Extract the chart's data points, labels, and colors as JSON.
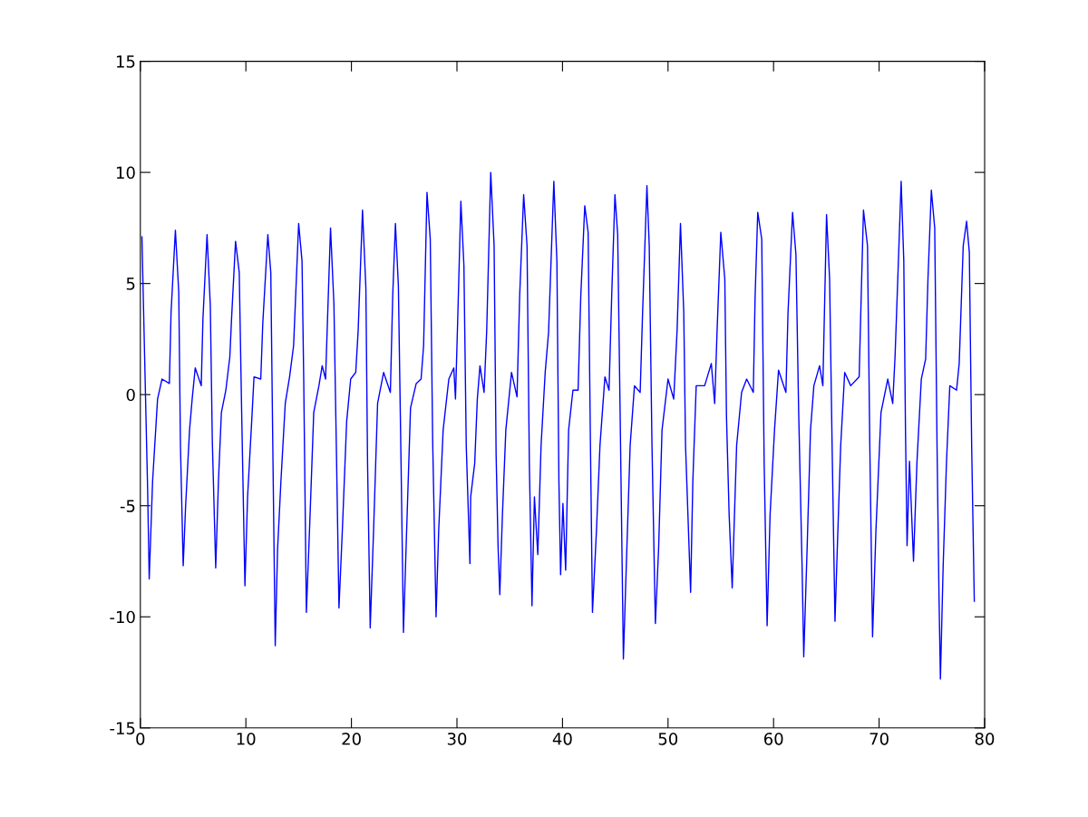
{
  "chart_data": {
    "type": "line",
    "xlim": [
      0,
      80
    ],
    "xticks": [
      0,
      10,
      20,
      30,
      40,
      50,
      60,
      70,
      80
    ],
    "ylim": [
      -15,
      15
    ],
    "yticks": [
      -15,
      -10,
      -5,
      0,
      5,
      10,
      15
    ],
    "grid": false,
    "series": [
      {
        "color": "#0000ff",
        "x": [
          0.15,
          0.69,
          0.84,
          1.16,
          1.63,
          2.05,
          2.75,
          2.91,
          3.32,
          3.64,
          3.8,
          4.06,
          4.28,
          4.66,
          4.91,
          5.2,
          5.77,
          5.93,
          6.32,
          6.63,
          6.82,
          7.14,
          7.4,
          7.68,
          8.1,
          8.48,
          8.64,
          9.02,
          9.37,
          9.6,
          9.91,
          10.16,
          10.55,
          10.77,
          11.41,
          11.6,
          12.08,
          12.36,
          12.55,
          12.78,
          13.0,
          13.32,
          13.73,
          14.14,
          14.52,
          15.0,
          15.32,
          15.48,
          15.73,
          16.06,
          16.43,
          16.92,
          17.23,
          17.55,
          18.02,
          18.34,
          18.57,
          18.82,
          19.14,
          19.55,
          19.93,
          20.41,
          20.64,
          21.05,
          21.37,
          21.53,
          21.78,
          22.1,
          22.48,
          23.05,
          23.69,
          23.91,
          24.17,
          24.45,
          24.71,
          24.93,
          25.18,
          25.6,
          26.14,
          26.6,
          26.84,
          27.16,
          27.47,
          27.7,
          28.02,
          28.27,
          28.69,
          29.23,
          29.7,
          29.86,
          30.09,
          30.37,
          30.66,
          30.88,
          31.23,
          31.3,
          31.68,
          31.93,
          32.18,
          32.57,
          32.82,
          33.2,
          33.52,
          33.71,
          33.9,
          34.06,
          34.31,
          34.63,
          35.17,
          35.69,
          35.94,
          36.32,
          36.64,
          36.86,
          37.11,
          37.34,
          37.66,
          37.97,
          38.36,
          38.68,
          39.18,
          39.47,
          39.66,
          39.82,
          40.04,
          40.3,
          40.58,
          40.99,
          41.48,
          41.73,
          42.11,
          42.43,
          42.65,
          42.84,
          43.22,
          43.55,
          44.02,
          44.41,
          44.66,
          44.97,
          45.23,
          45.46,
          45.77,
          46.0,
          46.41,
          46.82,
          47.36,
          47.59,
          48.0,
          48.22,
          48.48,
          48.8,
          49.11,
          49.43,
          50.0,
          50.54,
          50.86,
          51.18,
          51.49,
          51.66,
          52.14,
          52.35,
          52.67,
          53.47,
          54.1,
          54.42,
          54.65,
          55.0,
          55.38,
          55.54,
          55.79,
          56.08,
          56.5,
          56.97,
          57.45,
          58.08,
          58.25,
          58.5,
          58.88,
          59.11,
          59.39,
          59.67,
          60.09,
          60.47,
          61.17,
          61.37,
          61.8,
          62.12,
          62.38,
          62.7,
          62.86,
          63.18,
          63.5,
          63.82,
          64.36,
          64.67,
          65.02,
          65.31,
          65.56,
          65.82,
          66.04,
          66.36,
          66.74,
          67.31,
          68.11,
          68.33,
          68.52,
          68.9,
          69.12,
          69.38,
          69.7,
          70.18,
          70.82,
          71.29,
          71.51,
          71.77,
          72.09,
          72.34,
          72.5,
          72.65,
          72.88,
          73.26,
          73.58,
          74.0,
          74.41,
          74.63,
          74.95,
          75.27,
          75.49,
          75.68,
          75.81,
          76.07,
          76.38,
          76.7,
          77.34,
          77.59,
          77.97,
          78.29,
          78.55,
          78.77,
          79.02
        ],
        "values": [
          7.1,
          -4.3,
          -8.3,
          -3.9,
          -0.2,
          0.7,
          0.5,
          3.7,
          7.4,
          4.6,
          -2.3,
          -7.7,
          -5.1,
          -1.6,
          -0.2,
          1.2,
          0.4,
          3.4,
          7.2,
          4.0,
          -2.1,
          -7.8,
          -3.9,
          -0.8,
          0.2,
          1.7,
          3.4,
          6.9,
          5.5,
          -0.8,
          -8.6,
          -4.6,
          -1.2,
          0.8,
          0.7,
          3.2,
          7.2,
          5.5,
          -2.3,
          -11.3,
          -7.0,
          -3.9,
          -0.4,
          0.8,
          2.2,
          7.7,
          6.0,
          0.7,
          -9.8,
          -5.7,
          -0.8,
          0.4,
          1.3,
          0.7,
          7.5,
          4.1,
          -2.3,
          -9.6,
          -6.1,
          -1.2,
          0.7,
          1.0,
          2.9,
          8.3,
          4.8,
          -3.1,
          -10.5,
          -6.1,
          -0.4,
          1.0,
          0.1,
          4.4,
          7.7,
          4.9,
          -3.3,
          -10.7,
          -6.9,
          -0.6,
          0.5,
          0.7,
          2.2,
          9.1,
          7.0,
          -2.1,
          -10.0,
          -6.1,
          -1.6,
          0.7,
          1.2,
          -0.2,
          3.7,
          8.7,
          5.8,
          -2.3,
          -7.6,
          -4.6,
          -3.1,
          -0.2,
          1.3,
          0.1,
          2.9,
          10.0,
          6.7,
          -2.7,
          -6.9,
          -9.0,
          -5.4,
          -1.6,
          1.0,
          -0.1,
          4.4,
          9.0,
          6.7,
          -3.1,
          -9.5,
          -4.6,
          -7.2,
          -2.3,
          1.0,
          2.8,
          9.6,
          6.0,
          -3.9,
          -8.1,
          -4.9,
          -7.9,
          -1.6,
          0.2,
          0.2,
          4.4,
          8.5,
          7.3,
          -2.3,
          -9.8,
          -6.1,
          -2.3,
          0.8,
          0.2,
          4.4,
          9.0,
          7.2,
          -0.8,
          -11.9,
          -8.4,
          -2.3,
          0.4,
          0.1,
          3.7,
          9.4,
          6.7,
          -2.3,
          -10.3,
          -6.9,
          -1.6,
          0.7,
          -0.2,
          2.9,
          7.7,
          3.7,
          -2.3,
          -8.9,
          -3.9,
          0.4,
          0.4,
          1.4,
          -0.4,
          2.9,
          7.3,
          5.2,
          -1.0,
          -5.4,
          -8.7,
          -2.3,
          0.1,
          0.7,
          0.1,
          4.4,
          8.2,
          7.0,
          -3.1,
          -10.4,
          -5.4,
          -1.6,
          1.1,
          0.1,
          3.7,
          8.2,
          6.3,
          -0.8,
          -7.7,
          -11.8,
          -6.9,
          -1.6,
          0.4,
          1.3,
          0.4,
          8.1,
          5.2,
          -2.7,
          -10.2,
          -6.9,
          -2.3,
          1.0,
          0.4,
          0.8,
          4.9,
          8.3,
          6.7,
          -2.3,
          -10.9,
          -6.1,
          -0.8,
          0.7,
          -0.4,
          1.7,
          5.2,
          9.6,
          6.0,
          -1.6,
          -6.8,
          -3.0,
          -7.5,
          -3.1,
          0.7,
          1.6,
          5.2,
          9.2,
          7.5,
          -2.3,
          -9.2,
          -12.8,
          -7.7,
          -3.1,
          0.4,
          0.2,
          1.4,
          6.7,
          7.8,
          6.4,
          -2.3,
          -9.3
        ]
      }
    ]
  }
}
